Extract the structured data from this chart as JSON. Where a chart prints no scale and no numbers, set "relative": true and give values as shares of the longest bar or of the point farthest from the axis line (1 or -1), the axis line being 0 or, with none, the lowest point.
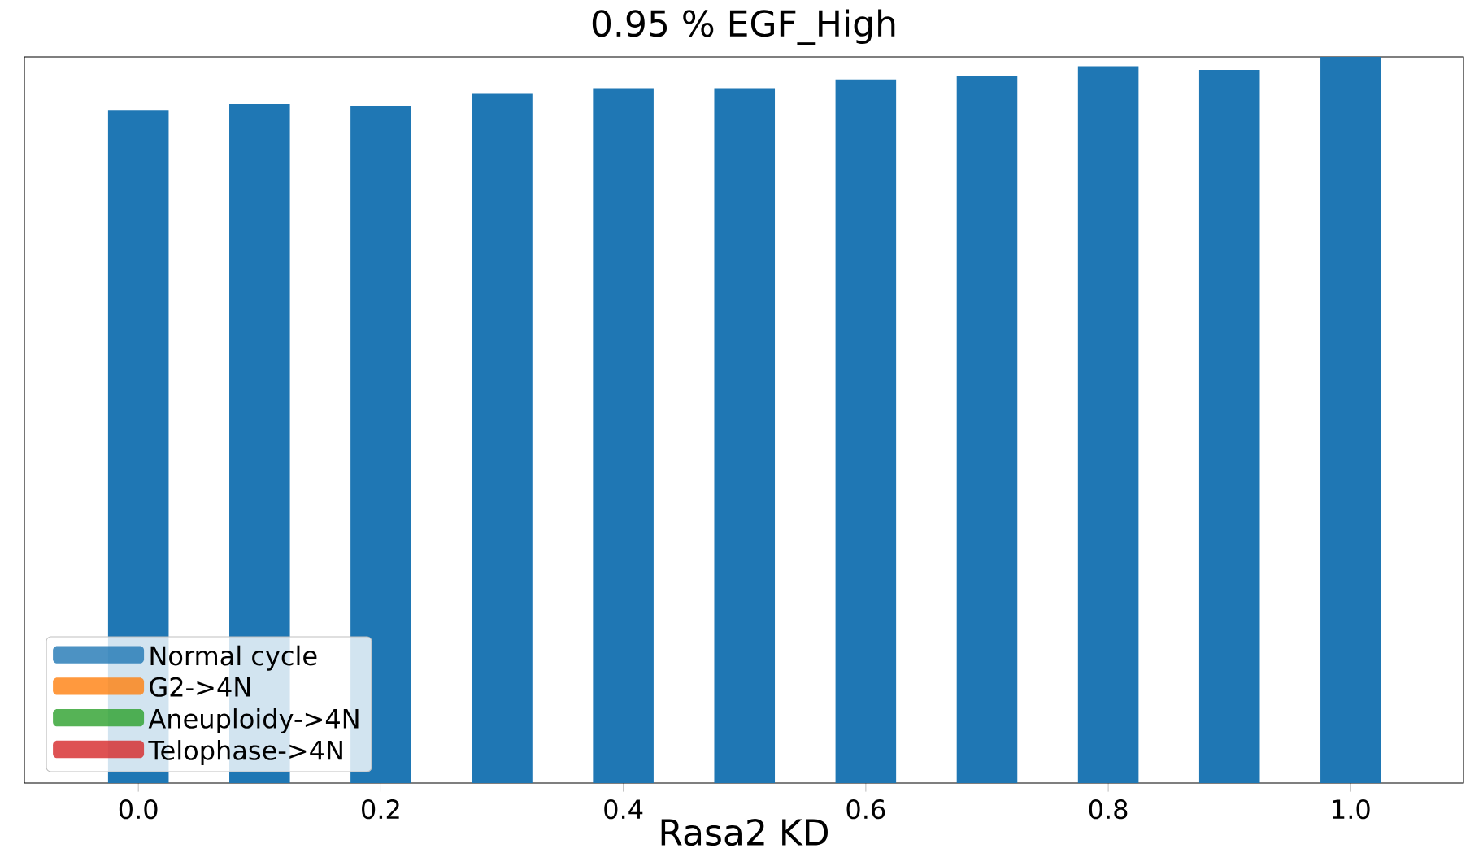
{
  "chart_data": {
    "type": "bar",
    "title": "0.95 % EGF_High",
    "xlabel": "Rasa2 KD",
    "stacked": true,
    "relative": true,
    "legend": "bottom left",
    "categories": [
      "0.0",
      null,
      "0.2",
      null,
      "0.4",
      null,
      "0.6",
      null,
      "0.8",
      null,
      "1.0"
    ],
    "series": [
      {
        "name": "Normal cycle",
        "color": "#1f77b4",
        "values": [
          0.926,
          0.935,
          0.933,
          0.949,
          0.957,
          0.957,
          0.969,
          0.973,
          0.987,
          0.982,
          1.0
        ]
      },
      {
        "name": "G2->4N",
        "color": "#ff7f0e",
        "values": [
          0,
          0,
          0,
          0,
          0,
          0,
          0,
          0,
          0,
          0,
          0
        ]
      },
      {
        "name": "Aneuploidy->4N",
        "color": "#2ca02c",
        "values": [
          0,
          0,
          0,
          0,
          0,
          0,
          0,
          0,
          0,
          0,
          0
        ]
      },
      {
        "name": "Telophase->4N",
        "color": "#d62728",
        "values": [
          0,
          0,
          0,
          0,
          0,
          0,
          0,
          0,
          0,
          0,
          0
        ]
      }
    ]
  }
}
